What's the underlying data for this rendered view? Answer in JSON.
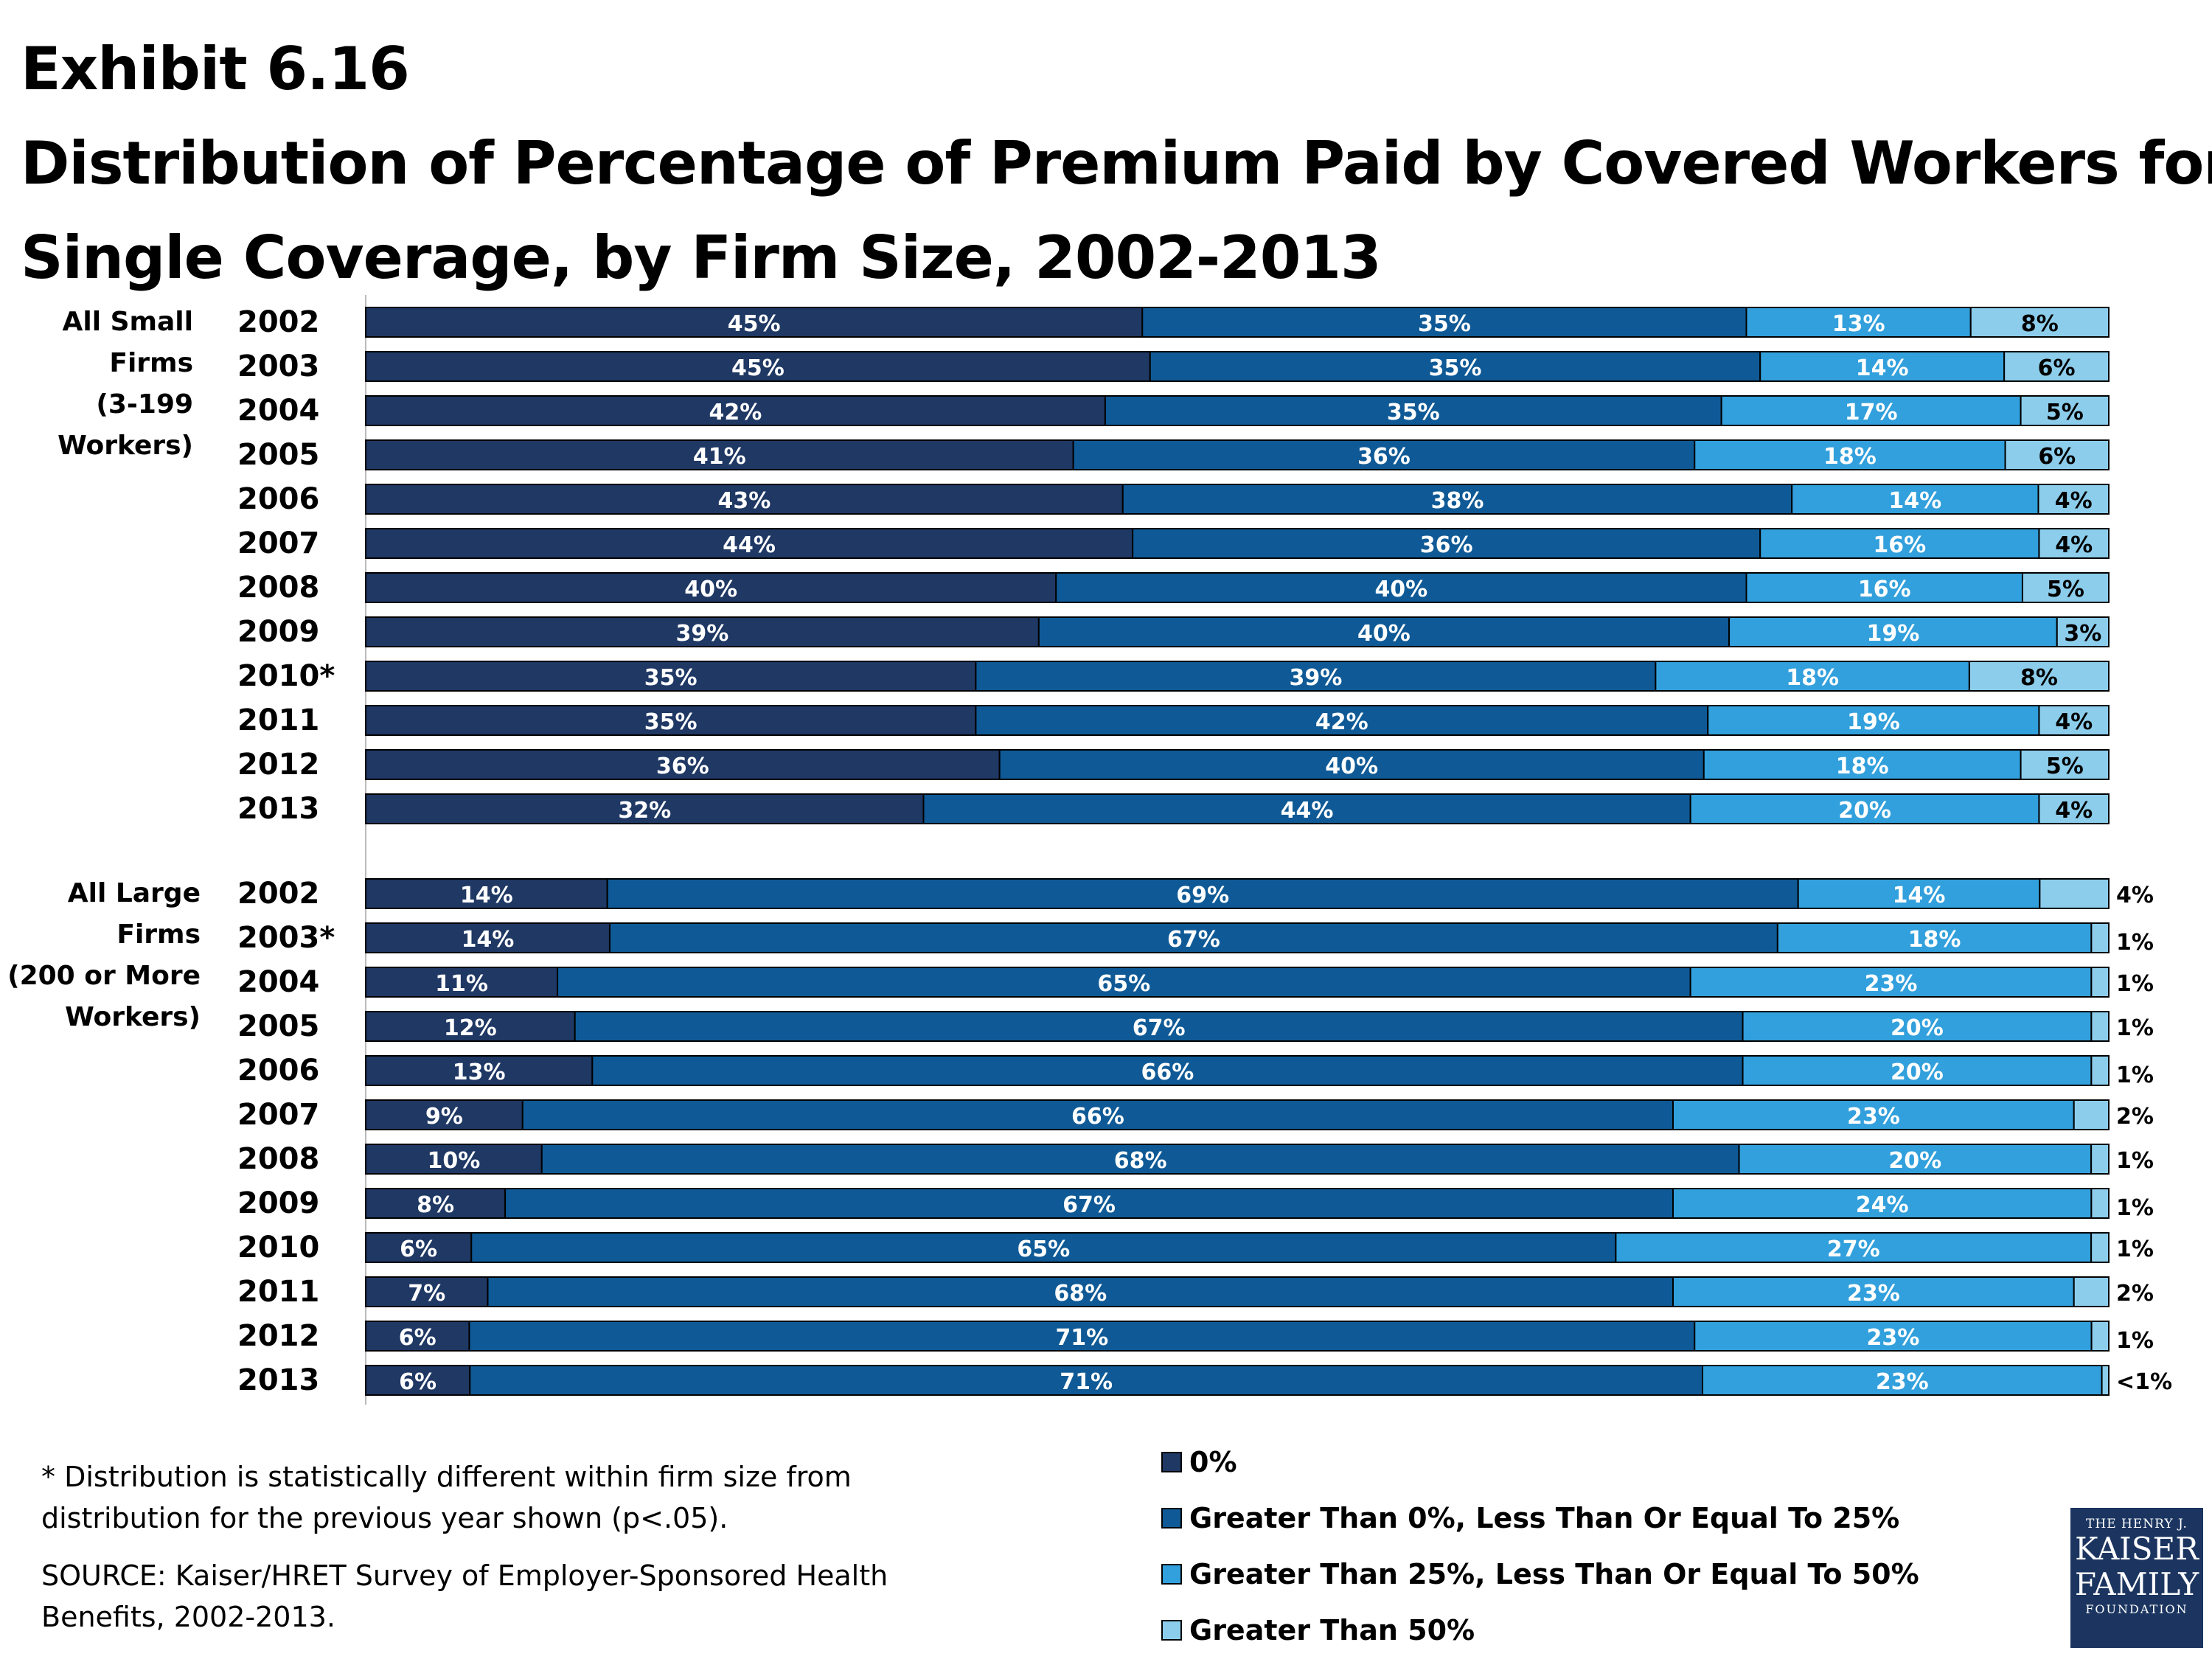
{
  "title": {
    "line1": "Exhibit 6.16",
    "line2": "Distribution of Percentage of Premium Paid by Covered Workers for",
    "line3": "Single Coverage, by Firm Size, 2002-2013"
  },
  "colors": {
    "zero": "#1f3864",
    "gt0_le25": "#0f5a96",
    "gt25_le50": "#32a0dc",
    "gt50": "#8ccdeb"
  },
  "chart_data": {
    "type": "bar",
    "orientation": "horizontal",
    "stacked": true,
    "xlim": [
      0,
      100
    ],
    "legend_placement": "bottom-center",
    "series": [
      {
        "name": "0%"
      },
      {
        "name": "Greater Than 0%, Less Than Or Equal To 25%"
      },
      {
        "name": "Greater Than 25%, Less Than Or Equal To 50%"
      },
      {
        "name": "Greater Than 50%"
      }
    ],
    "groups": [
      {
        "label_lines": [
          "All Small",
          "Firms",
          "(3-199",
          "Workers)"
        ],
        "rows": [
          {
            "year": "2002",
            "values": [
              45,
              35,
              13,
              8
            ],
            "labels": [
              "45%",
              "35%",
              "13%",
              "8%"
            ]
          },
          {
            "year": "2003",
            "values": [
              45,
              35,
              14,
              6
            ],
            "labels": [
              "45%",
              "35%",
              "14%",
              "6%"
            ]
          },
          {
            "year": "2004",
            "values": [
              42,
              35,
              17,
              5
            ],
            "labels": [
              "42%",
              "35%",
              "17%",
              "5%"
            ]
          },
          {
            "year": "2005",
            "values": [
              41,
              36,
              18,
              6
            ],
            "labels": [
              "41%",
              "36%",
              "18%",
              "6%"
            ]
          },
          {
            "year": "2006",
            "values": [
              43,
              38,
              14,
              4
            ],
            "labels": [
              "43%",
              "38%",
              "14%",
              "4%"
            ]
          },
          {
            "year": "2007",
            "values": [
              44,
              36,
              16,
              4
            ],
            "labels": [
              "44%",
              "36%",
              "16%",
              "4%"
            ]
          },
          {
            "year": "2008",
            "values": [
              40,
              40,
              16,
              5
            ],
            "labels": [
              "40%",
              "40%",
              "16%",
              "5%"
            ]
          },
          {
            "year": "2009",
            "values": [
              39,
              40,
              19,
              3
            ],
            "labels": [
              "39%",
              "40%",
              "19%",
              "3%"
            ]
          },
          {
            "year": "2010*",
            "values": [
              35,
              39,
              18,
              8
            ],
            "labels": [
              "35%",
              "39%",
              "18%",
              "8%"
            ]
          },
          {
            "year": "2011",
            "values": [
              35,
              42,
              19,
              4
            ],
            "labels": [
              "35%",
              "42%",
              "19%",
              "4%"
            ]
          },
          {
            "year": "2012",
            "values": [
              36,
              40,
              18,
              5
            ],
            "labels": [
              "36%",
              "40%",
              "18%",
              "5%"
            ]
          },
          {
            "year": "2013",
            "values": [
              32,
              44,
              20,
              4
            ],
            "labels": [
              "32%",
              "44%",
              "20%",
              "4%"
            ]
          }
        ]
      },
      {
        "label_lines": [
          "All Large",
          "Firms",
          "(200 or More",
          "Workers)"
        ],
        "rows": [
          {
            "year": "2002",
            "values": [
              14,
              69,
              14,
              4
            ],
            "labels": [
              "14%",
              "69%",
              "14%",
              "4%"
            ]
          },
          {
            "year": "2003*",
            "values": [
              14,
              67,
              18,
              1
            ],
            "labels": [
              "14%",
              "67%",
              "18%",
              "1%"
            ]
          },
          {
            "year": "2004",
            "values": [
              11,
              65,
              23,
              1
            ],
            "labels": [
              "11%",
              "65%",
              "23%",
              "1%"
            ]
          },
          {
            "year": "2005",
            "values": [
              12,
              67,
              20,
              1
            ],
            "labels": [
              "12%",
              "67%",
              "20%",
              "1%"
            ]
          },
          {
            "year": "2006",
            "values": [
              13,
              66,
              20,
              1
            ],
            "labels": [
              "13%",
              "66%",
              "20%",
              "1%"
            ]
          },
          {
            "year": "2007",
            "values": [
              9,
              66,
              23,
              2
            ],
            "labels": [
              "9%",
              "66%",
              "23%",
              "2%"
            ]
          },
          {
            "year": "2008",
            "values": [
              10,
              68,
              20,
              1
            ],
            "labels": [
              "10%",
              "68%",
              "20%",
              "1%"
            ]
          },
          {
            "year": "2009",
            "values": [
              8,
              67,
              24,
              1
            ],
            "labels": [
              "8%",
              "67%",
              "24%",
              "1%"
            ]
          },
          {
            "year": "2010",
            "values": [
              6,
              65,
              27,
              1
            ],
            "labels": [
              "6%",
              "65%",
              "27%",
              "1%"
            ]
          },
          {
            "year": "2011",
            "values": [
              7,
              68,
              23,
              2
            ],
            "labels": [
              "7%",
              "68%",
              "23%",
              "2%"
            ]
          },
          {
            "year": "2012",
            "values": [
              6,
              71,
              23,
              1
            ],
            "labels": [
              "6%",
              "71%",
              "23%",
              "1%"
            ]
          },
          {
            "year": "2013",
            "values": [
              6,
              71,
              23,
              0.4
            ],
            "labels": [
              "6%",
              "71%",
              "23%",
              "<1%"
            ]
          }
        ]
      }
    ]
  },
  "footnote": {
    "note": "* Distribution is statistically different within firm size from distribution for the previous year shown (p<.05).",
    "source": "SOURCE:  Kaiser/HRET Survey of Employer-Sponsored Health Benefits, 2002-2013."
  },
  "legend": {
    "items": [
      {
        "label": "0%",
        "color_key": "zero"
      },
      {
        "label": "Greater Than 0%, Less Than Or Equal To 25%",
        "color_key": "gt0_le25"
      },
      {
        "label": "Greater Than 25%, Less Than Or Equal To 50%",
        "color_key": "gt25_le50"
      },
      {
        "label": "Greater Than 50%",
        "color_key": "gt50"
      }
    ]
  },
  "logo": {
    "line1": "THE HENRY J.",
    "line2": "KAISER",
    "line3": "FAMILY",
    "line4": "FOUNDATION",
    "icon": "kaiser-family-foundation-logo"
  }
}
